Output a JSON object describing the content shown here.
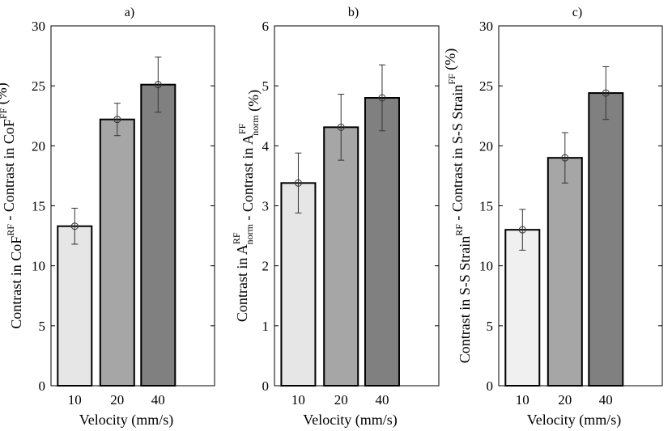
{
  "chart_data": [
    {
      "type": "bar",
      "title": "a)",
      "xlabel": "Velocity (mm/s)",
      "ylabel": {
        "part1": "Contrast in CoF",
        "sup1": "RF",
        "part2": " - Contrast in CoF",
        "sup2": "FF",
        "part3": " (%)"
      },
      "categories": [
        "10",
        "20",
        "40"
      ],
      "values": [
        13.3,
        22.2,
        25.1
      ],
      "errors": [
        1.5,
        1.35,
        2.3
      ],
      "ylim": [
        0,
        30
      ],
      "yticks": [
        "0",
        "5",
        "10",
        "15",
        "20",
        "25",
        "30"
      ],
      "ytick_values": [
        0,
        5,
        10,
        15,
        20,
        25,
        30
      ],
      "colors": [
        "#e6e6e6",
        "#a6a6a6",
        "#808080"
      ]
    },
    {
      "type": "bar",
      "title": "b)",
      "xlabel": "Velocity (mm/s)",
      "ylabel": {
        "part1": "Contrast in A",
        "sup1": "RF",
        "sub1": "norm",
        "part2": " - Contrast in A",
        "sup2": "FF",
        "sub2": "norm",
        "part3": " (%)"
      },
      "categories": [
        "10",
        "20",
        "40"
      ],
      "values": [
        3.38,
        4.31,
        4.8
      ],
      "errors": [
        0.5,
        0.55,
        0.55
      ],
      "ylim": [
        0,
        6
      ],
      "yticks": [
        "0",
        "1",
        "2",
        "3",
        "4",
        "5",
        "6"
      ],
      "ytick_values": [
        0,
        1,
        2,
        3,
        4,
        5,
        6
      ],
      "colors": [
        "#e6e6e6",
        "#a6a6a6",
        "#808080"
      ]
    },
    {
      "type": "bar",
      "title": "c)",
      "xlabel": "Velocity (mm/s)",
      "ylabel": {
        "part1": "Contrast in S-S Strain",
        "sup1": "RF",
        "part2": " - Contrast in S-S Strain",
        "sup2": "FF",
        "part3": " (%)"
      },
      "categories": [
        "10",
        "20",
        "40"
      ],
      "values": [
        13.0,
        19.0,
        24.4
      ],
      "errors": [
        1.7,
        2.1,
        2.2
      ],
      "ylim": [
        0,
        30
      ],
      "yticks": [
        "0",
        "5",
        "10",
        "15",
        "20",
        "25",
        "30"
      ],
      "ytick_values": [
        0,
        5,
        10,
        15,
        20,
        25,
        30
      ],
      "colors": [
        "#f0f0f0",
        "#a6a6a6",
        "#808080"
      ]
    }
  ]
}
